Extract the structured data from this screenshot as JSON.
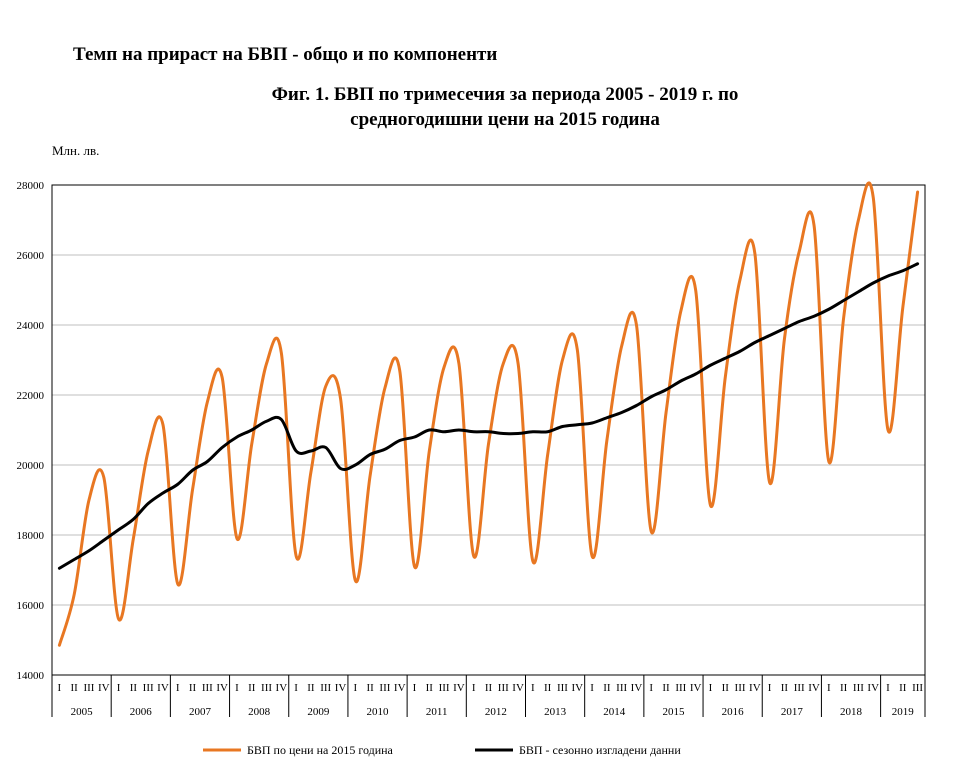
{
  "page": {
    "heading": "Темп на прираст на БВП - общо и по компоненти"
  },
  "chart_data": {
    "type": "line",
    "title": "Фиг. 1. БВП по тримесечия за периода 2005 - 2019 г. по средногодишни цени на 2015 година",
    "title_lines": [
      "Фиг. 1. БВП по тримесечия за периода 2005 - 2019 г. по",
      "средногодишни цени на 2015 година"
    ],
    "ylabel": "Млн. лв.",
    "xlabel": "",
    "ylim": [
      14000,
      28000
    ],
    "yticks": [
      14000,
      16000,
      18000,
      20000,
      22000,
      24000,
      26000,
      28000
    ],
    "grid": true,
    "legend_position": "bottom",
    "quarter_labels": [
      "I",
      "II",
      "III",
      "IV"
    ],
    "years": [
      "2005",
      "2006",
      "2007",
      "2008",
      "2009",
      "2010",
      "2011",
      "2012",
      "2013",
      "2014",
      "2015",
      "2016",
      "2017",
      "2018",
      "2019"
    ],
    "x": [
      "2005 I",
      "2005 II",
      "2005 III",
      "2005 IV",
      "2006 I",
      "2006 II",
      "2006 III",
      "2006 IV",
      "2007 I",
      "2007 II",
      "2007 III",
      "2007 IV",
      "2008 I",
      "2008 II",
      "2008 III",
      "2008 IV",
      "2009 I",
      "2009 II",
      "2009 III",
      "2009 IV",
      "2010 I",
      "2010 II",
      "2010 III",
      "2010 IV",
      "2011 I",
      "2011 II",
      "2011 III",
      "2011 IV",
      "2012 I",
      "2012 II",
      "2012 III",
      "2012 IV",
      "2013 I",
      "2013 II",
      "2013 III",
      "2013 IV",
      "2014 I",
      "2014 II",
      "2014 III",
      "2014 IV",
      "2015 I",
      "2015 II",
      "2015 III",
      "2015 IV",
      "2016 I",
      "2016 II",
      "2016 III",
      "2016 IV",
      "2017 I",
      "2017 II",
      "2017 III",
      "2017 IV",
      "2018 I",
      "2018 II",
      "2018 III",
      "2018 IV",
      "2019 I",
      "2019 II",
      "2019 III"
    ],
    "series": [
      {
        "name": "БВП  по цени на 2015  година",
        "color": "#E87722",
        "values": [
          14850,
          16300,
          19000,
          19650,
          15600,
          17900,
          20400,
          21150,
          16600,
          19300,
          21800,
          22500,
          17900,
          20600,
          22900,
          23200,
          17400,
          19800,
          22250,
          21900,
          16700,
          19700,
          22200,
          22700,
          17100,
          20400,
          22800,
          22900,
          17400,
          20600,
          22900,
          22900,
          17250,
          20300,
          23000,
          23300,
          17400,
          20700,
          23400,
          24000,
          18100,
          21500,
          24400,
          25000,
          18850,
          22500,
          25300,
          26050,
          19500,
          23600,
          26100,
          26850,
          20100,
          24200,
          27000,
          27650,
          21000,
          24500,
          27800
        ]
      },
      {
        "name": "БВП  - сезонно изгладени данни",
        "color": "#000000",
        "values": [
          17050,
          17300,
          17550,
          17850,
          18150,
          18450,
          18900,
          19200,
          19450,
          19850,
          20100,
          20500,
          20800,
          21000,
          21250,
          21300,
          20400,
          20400,
          20500,
          19900,
          20000,
          20300,
          20450,
          20700,
          20800,
          21000,
          20950,
          21000,
          20950,
          20950,
          20900,
          20900,
          20950,
          20950,
          21100,
          21150,
          21200,
          21350,
          21500,
          21700,
          21950,
          22150,
          22400,
          22600,
          22850,
          23050,
          23250,
          23500,
          23700,
          23900,
          24100,
          24250,
          24450,
          24700,
          24950,
          25200,
          25400,
          25550,
          25750
        ]
      }
    ]
  }
}
